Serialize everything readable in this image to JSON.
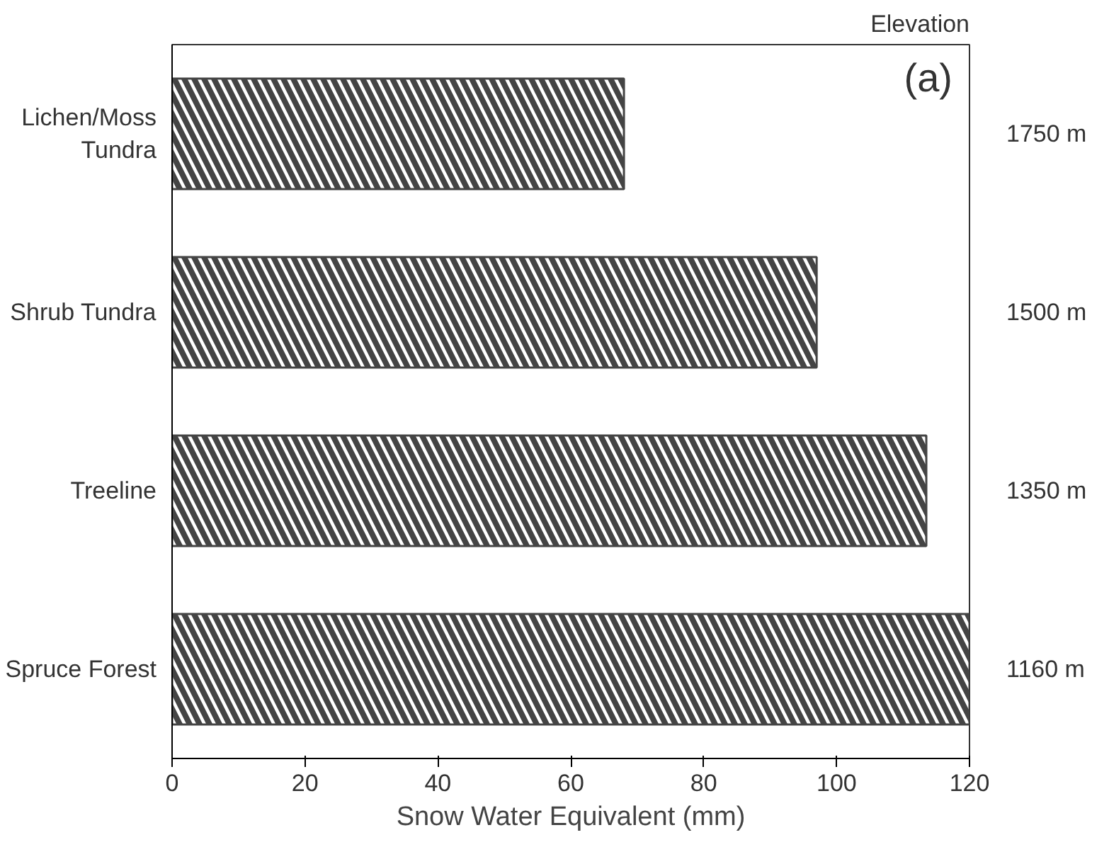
{
  "chart_data": {
    "type": "bar",
    "orientation": "horizontal",
    "categories": [
      "Lichen/Moss Tundra",
      "Shrub Tundra",
      "Treeline",
      "Spruce Forest"
    ],
    "values": [
      68,
      97,
      113.5,
      120
    ],
    "color": "#444444",
    "xlabel": "Snow Water Equivalent (mm)",
    "xlim": [
      0,
      120
    ],
    "xticks": [
      0,
      20,
      40,
      60,
      80,
      100,
      120
    ],
    "grid": false,
    "annotations": [
      "Elevation",
      "(a)",
      "1750 m",
      "1500 m",
      "1350 m",
      "1160 m"
    ]
  }
}
